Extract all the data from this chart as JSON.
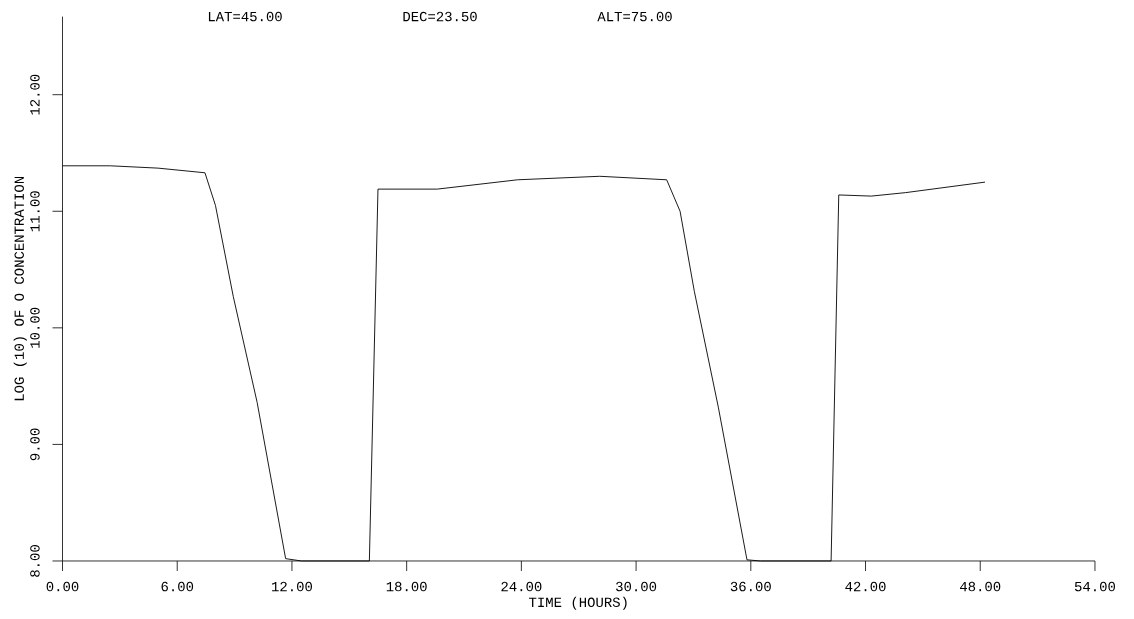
{
  "chart_data": {
    "type": "line",
    "xlabel": "TIME (HOURS)",
    "ylabel": "LOG (10) OF O CONCENTRATION",
    "annotations": [
      "LAT=45.00",
      "DEC=23.50",
      "ALT=75.00"
    ],
    "x": [
      0,
      2.5,
      5.0,
      7.45,
      8.0,
      8.93,
      10.18,
      11.67,
      12.5,
      16.05,
      16.5,
      19.6,
      23.8,
      28.1,
      31.6,
      32.3,
      33.05,
      34.3,
      35.8,
      36.5,
      40.2,
      40.6,
      42.3,
      44.1,
      48.25
    ],
    "values": [
      11.39,
      11.39,
      11.37,
      11.33,
      11.05,
      10.27,
      9.36,
      8.02,
      8.0,
      8.0,
      11.19,
      11.19,
      11.27,
      11.3,
      11.27,
      11.0,
      10.31,
      9.32,
      8.01,
      8.0,
      8.0,
      11.14,
      11.13,
      11.16,
      11.25
    ],
    "color": "#000000",
    "grid": false,
    "marker": "none",
    "line_style": "solid",
    "xlim": [
      0,
      54
    ],
    "ylim": [
      8,
      12.67
    ],
    "xticks": [
      {
        "value": 0,
        "label": "0.00"
      },
      {
        "value": 6,
        "label": "6.00"
      },
      {
        "value": 12,
        "label": "12.00"
      },
      {
        "value": 18,
        "label": "18.00"
      },
      {
        "value": 24,
        "label": "24.00"
      },
      {
        "value": 30,
        "label": "30.00"
      },
      {
        "value": 36,
        "label": "36.00"
      },
      {
        "value": 42,
        "label": "42.00"
      },
      {
        "value": 48,
        "label": "48.00"
      },
      {
        "value": 54,
        "label": "54.00"
      }
    ],
    "yticks": [
      {
        "value": 8,
        "label": "8.00"
      },
      {
        "value": 9,
        "label": "9.00"
      },
      {
        "value": 10,
        "label": "10.00"
      },
      {
        "value": 11,
        "label": "11.00"
      },
      {
        "value": 12,
        "label": "12.00"
      }
    ]
  }
}
